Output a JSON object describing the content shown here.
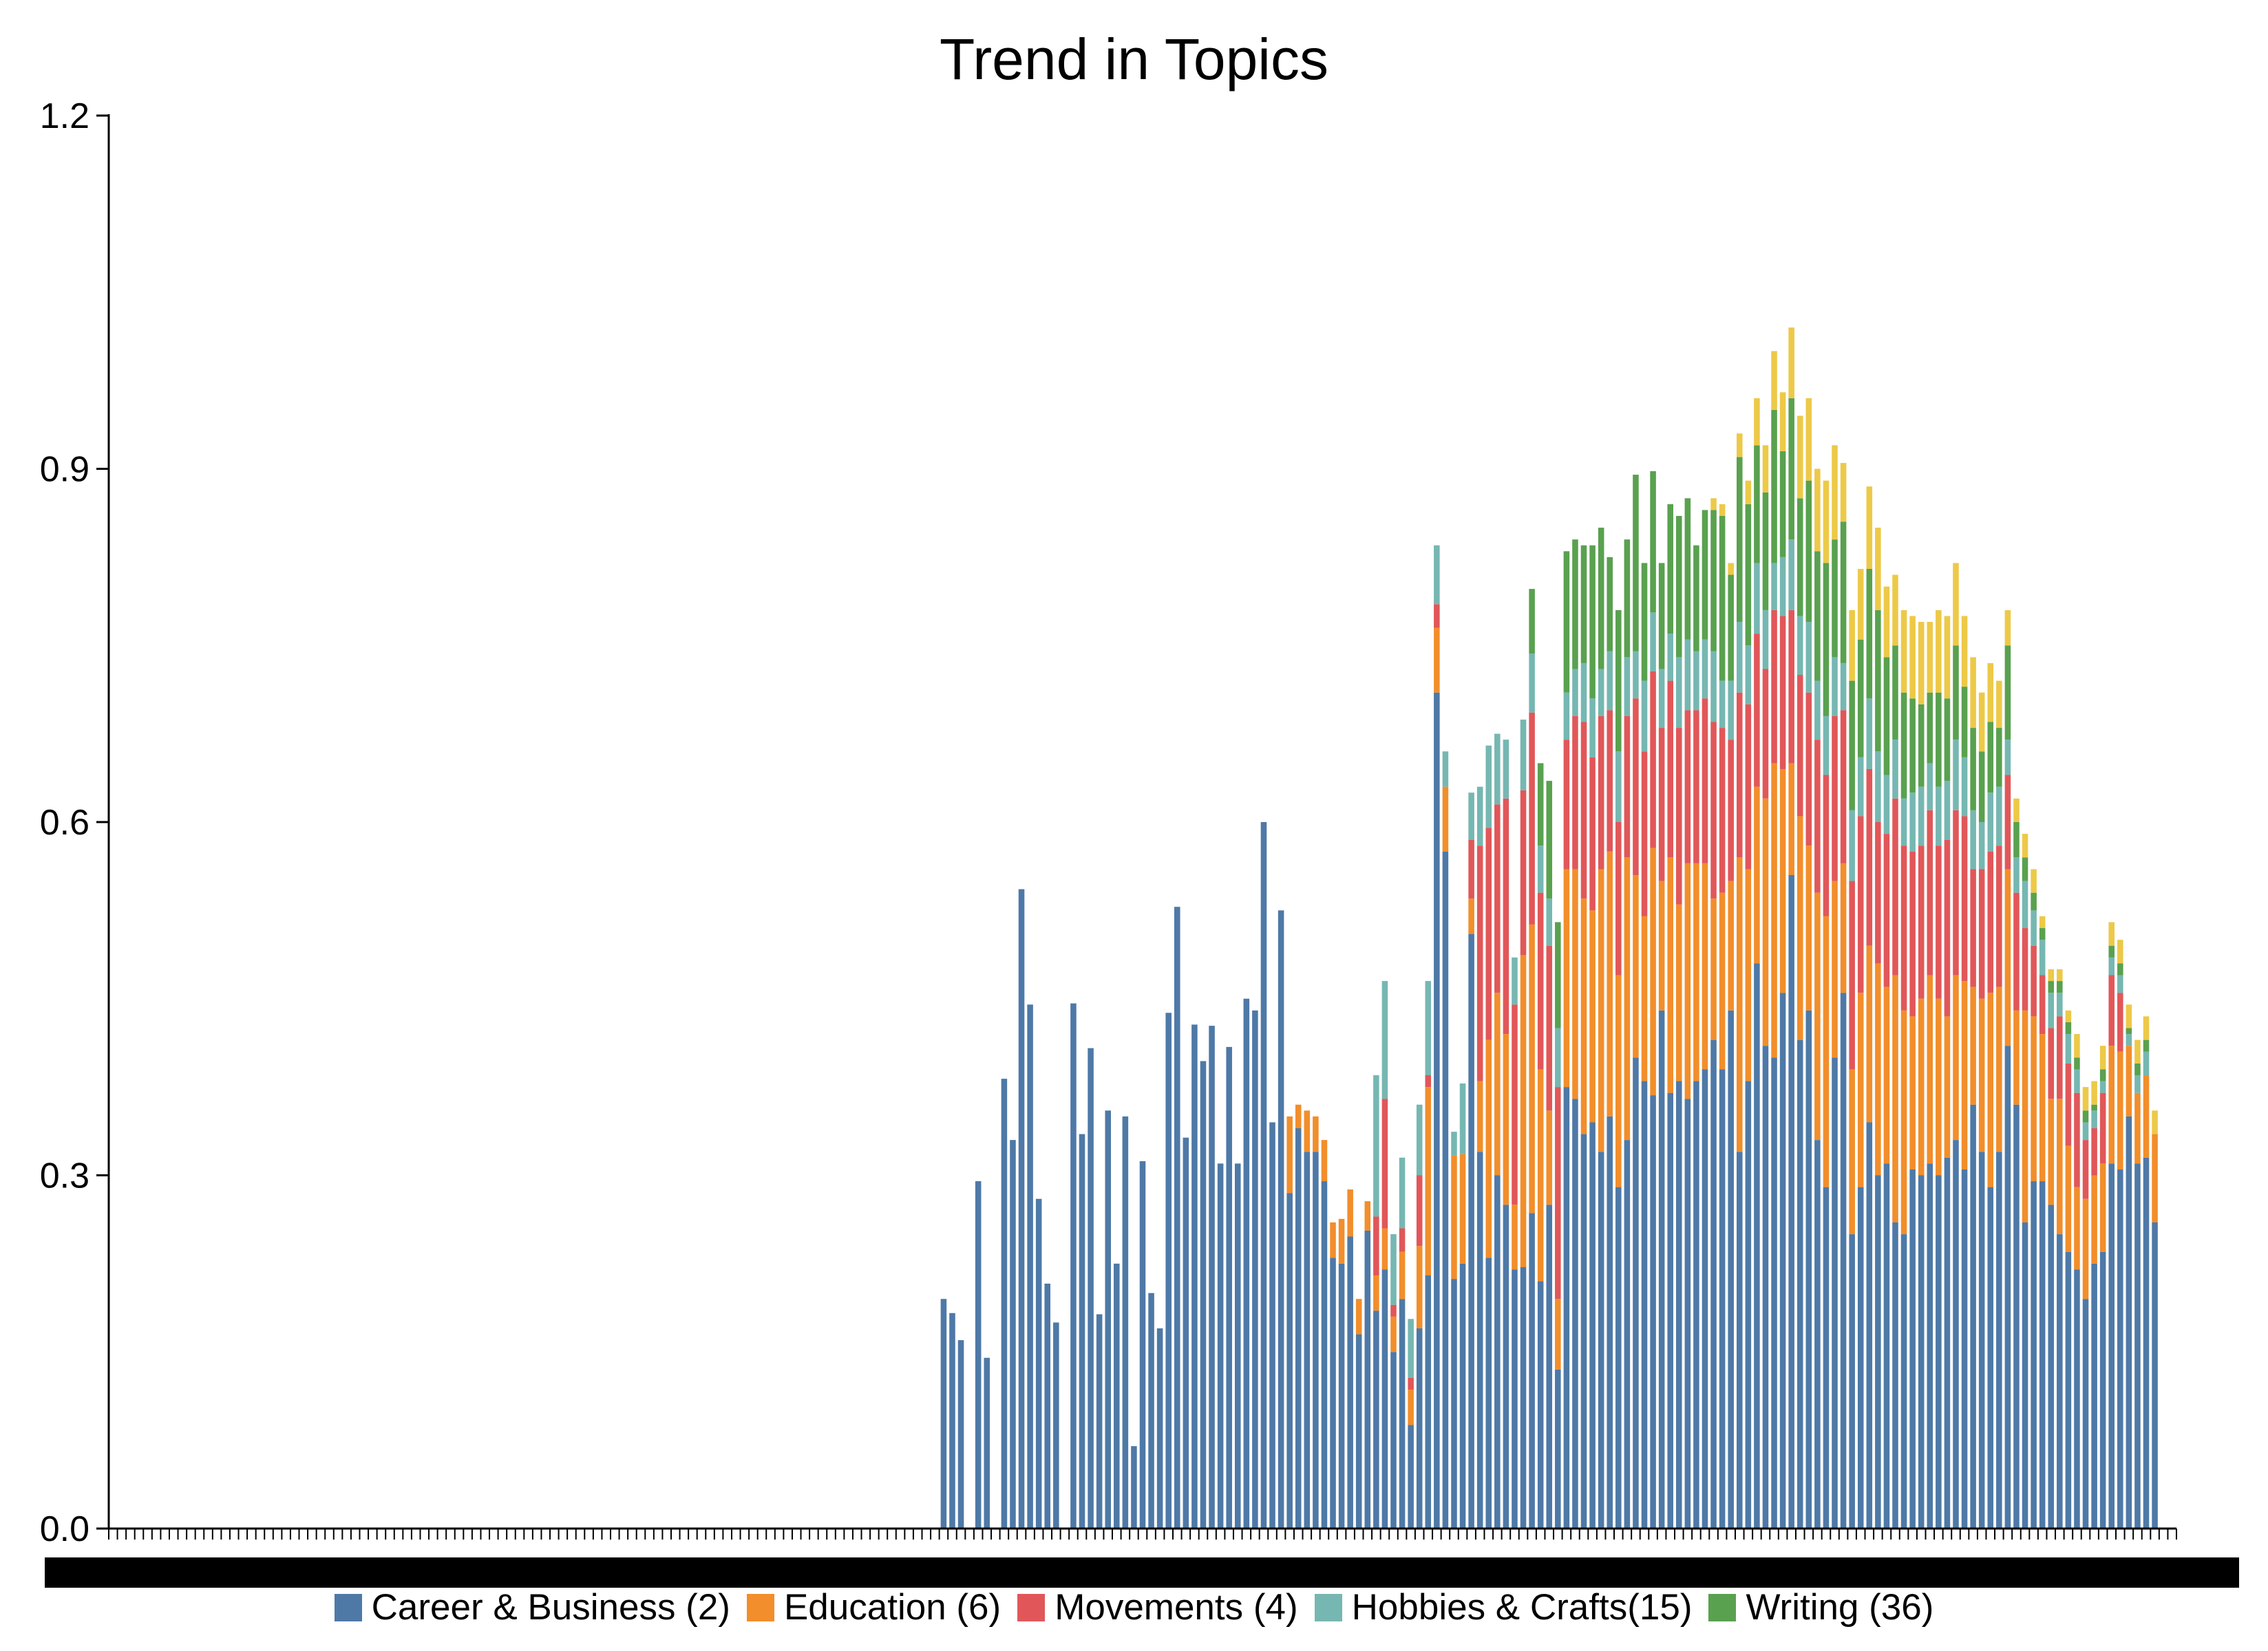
{
  "chart_data": {
    "type": "bar",
    "stacked": true,
    "title": "Trend in Topics",
    "xlabel": "",
    "ylabel": "",
    "ylim": [
      0,
      1.2
    ],
    "yticks": [
      "0.0",
      "0.3",
      "0.6",
      "0.9",
      "1.2"
    ],
    "num_x_slots": 239,
    "first_bar_index": 96,
    "legend_position": "bottom",
    "series": [
      {
        "name": "Career & Business (2)",
        "color": "#4e79a7",
        "values": [
          0.195,
          0.183,
          0.16,
          0,
          0.295,
          0.145,
          0,
          0.382,
          0.33,
          0.543,
          0.445,
          0.28,
          0.208,
          0.175,
          0,
          0.446,
          0.335,
          0.408,
          0.182,
          0.355,
          0.225,
          0.35,
          0.07,
          0.312,
          0.2,
          0.17,
          0.438,
          0.528,
          0.332,
          0.428,
          0.397,
          0.427,
          0.31,
          0.409,
          0.31,
          0.45,
          0.44,
          0.6,
          0.345,
          0.525,
          0.285,
          0.34,
          0.32,
          0.32,
          0.295,
          0.23,
          0.225,
          0.248,
          0.165,
          0.253,
          0.185,
          0.22,
          0.15,
          0.195,
          0.088,
          0.17,
          0.215,
          0.71,
          0.575,
          0.212,
          0.225,
          0.505,
          0.32,
          0.23,
          0.3,
          0.275,
          0.22,
          0.222,
          0.268,
          0.21,
          0.275,
          0.135,
          0.375,
          0.365,
          0.335,
          0.345,
          0.32,
          0.35,
          0.29,
          0.33,
          0.4,
          0.38,
          0.368,
          0.44,
          0.37,
          0.38,
          0.365,
          0.38,
          0.39,
          0.415,
          0.39,
          0.44,
          0.32,
          0.38,
          0.48,
          0.41,
          0.4,
          0.455,
          0.555,
          0.415,
          0.44,
          0.33,
          0.29,
          0.4,
          0.455,
          0.25,
          0.29,
          0.345,
          0.3,
          0.31,
          0.26,
          0.25,
          0.305,
          0.3,
          0.31,
          0.3,
          0.315,
          0.33,
          0.305,
          0.36,
          0.32,
          0.29,
          0.32,
          0.41,
          0.36,
          0.26,
          0.295,
          0.295,
          0.275,
          0.25,
          0.235,
          0.22,
          0.195,
          0.225,
          0.235,
          0.31,
          0.305,
          0.35,
          0.31,
          0.315,
          0.26
        ]
      },
      {
        "name": "Education (6)",
        "color": "#f28e2b",
        "values": [
          0,
          0,
          0,
          0,
          0,
          0,
          0,
          0,
          0,
          0,
          0,
          0,
          0,
          0,
          0,
          0,
          0,
          0,
          0,
          0,
          0,
          0,
          0,
          0,
          0,
          0,
          0,
          0,
          0,
          0,
          0,
          0,
          0,
          0,
          0,
          0,
          0,
          0,
          0,
          0,
          0.065,
          0.02,
          0.035,
          0.03,
          0.035,
          0.03,
          0.038,
          0.04,
          0.03,
          0.025,
          0.03,
          0.035,
          0.03,
          0.04,
          0.03,
          0.07,
          0.16,
          0.055,
          0.055,
          0.105,
          0.093,
          0.03,
          0.06,
          0.185,
          0.155,
          0.145,
          0.055,
          0.265,
          0.245,
          0.18,
          0.08,
          0.06,
          0.185,
          0.195,
          0.2,
          0.18,
          0.24,
          0.225,
          0.18,
          0.24,
          0.155,
          0.14,
          0.21,
          0.11,
          0.2,
          0.15,
          0.2,
          0.185,
          0.175,
          0.12,
          0.15,
          0.11,
          0.25,
          0.18,
          0.15,
          0.21,
          0.25,
          0.19,
          0.095,
          0.19,
          0.14,
          0.21,
          0.23,
          0.15,
          0.11,
          0.14,
          0.165,
          0.15,
          0.18,
          0.15,
          0.21,
          0.19,
          0.13,
          0.15,
          0.16,
          0.15,
          0.12,
          0.14,
          0.16,
          0.1,
          0.13,
          0.165,
          0.14,
          0.15,
          0.08,
          0.18,
          0.14,
          0.125,
          0.09,
          0.115,
          0.09,
          0.07,
          0.085,
          0.075,
          0.075,
          0.1,
          0.1,
          0.06,
          0.06,
          0.07,
          0.075
        ]
      },
      {
        "name": "Movements (4)",
        "color": "#e15759",
        "values": [
          0,
          0,
          0,
          0,
          0,
          0,
          0,
          0,
          0,
          0,
          0,
          0,
          0,
          0,
          0,
          0,
          0,
          0,
          0,
          0,
          0,
          0,
          0,
          0,
          0,
          0,
          0,
          0,
          0,
          0,
          0,
          0,
          0,
          0,
          0,
          0,
          0,
          0,
          0,
          0,
          0,
          0,
          0,
          0,
          0,
          0,
          0,
          0,
          0,
          0,
          0.05,
          0.11,
          0.01,
          0.02,
          0.01,
          0.06,
          0.01,
          0.02,
          0,
          0,
          0,
          0.05,
          0.2,
          0.18,
          0.16,
          0.2,
          0.17,
          0.14,
          0.18,
          0.15,
          0.14,
          0.18,
          0.11,
          0.13,
          0.15,
          0.13,
          0.13,
          0.12,
          0.13,
          0.12,
          0.15,
          0.14,
          0.15,
          0.13,
          0.15,
          0.15,
          0.13,
          0.13,
          0.14,
          0.15,
          0.14,
          0.12,
          0.14,
          0.14,
          0.13,
          0.11,
          0.13,
          0.13,
          0.13,
          0.12,
          0.13,
          0.13,
          0.12,
          0.14,
          0.13,
          0.16,
          0.15,
          0.15,
          0.12,
          0.13,
          0.15,
          0.14,
          0.14,
          0.13,
          0.14,
          0.13,
          0.15,
          0.14,
          0.14,
          0.1,
          0.11,
          0.12,
          0.12,
          0.08,
          0.1,
          0.07,
          0.06,
          0.05,
          0.06,
          0.07,
          0.07,
          0.08,
          0.05,
          0.04,
          0.06,
          0.06,
          0.05
        ]
      },
      {
        "name": "Hobbies & Crafts(15)",
        "color": "#76b7b2",
        "values": [
          0,
          0,
          0,
          0,
          0,
          0,
          0,
          0,
          0,
          0,
          0,
          0,
          0,
          0,
          0,
          0,
          0,
          0,
          0,
          0,
          0,
          0,
          0,
          0,
          0,
          0,
          0,
          0,
          0,
          0,
          0,
          0,
          0,
          0,
          0,
          0,
          0,
          0,
          0,
          0,
          0,
          0,
          0,
          0,
          0,
          0,
          0,
          0,
          0,
          0,
          0.12,
          0.1,
          0.06,
          0.06,
          0.05,
          0.06,
          0.08,
          0.05,
          0.03,
          0.02,
          0.06,
          0.04,
          0.05,
          0.07,
          0.06,
          0.05,
          0.04,
          0.06,
          0.05,
          0.04,
          0.04,
          0.05,
          0.04,
          0.04,
          0.05,
          0.05,
          0.04,
          0.05,
          0.06,
          0.05,
          0.04,
          0.06,
          0.05,
          0.05,
          0.04,
          0.06,
          0.06,
          0.05,
          0.05,
          0.06,
          0.04,
          0.05,
          0.06,
          0.05,
          0.06,
          0.05,
          0.04,
          0.05,
          0.06,
          0.05,
          0.06,
          0.05,
          0.05,
          0.05,
          0.04,
          0.06,
          0.05,
          0.06,
          0.06,
          0.05,
          0.05,
          0.04,
          0.05,
          0.05,
          0.04,
          0.05,
          0.05,
          0.06,
          0.05,
          0.05,
          0.04,
          0.05,
          0.05,
          0.03,
          0.03,
          0.04,
          0.03,
          0.03,
          0.03,
          0.02,
          0.025,
          0.02,
          0.015,
          0.015,
          0.01,
          0.015,
          0.015,
          0.01,
          0.015,
          0.02
        ]
      },
      {
        "name": "Writing (36)",
        "color": "#59a14f",
        "values": [
          0,
          0,
          0,
          0,
          0,
          0,
          0,
          0,
          0,
          0,
          0,
          0,
          0,
          0,
          0,
          0,
          0,
          0,
          0,
          0,
          0,
          0,
          0,
          0,
          0,
          0,
          0,
          0,
          0,
          0,
          0,
          0,
          0,
          0,
          0,
          0,
          0,
          0,
          0,
          0,
          0,
          0,
          0,
          0,
          0,
          0,
          0,
          0,
          0,
          0,
          0,
          0,
          0,
          0,
          0,
          0,
          0,
          0,
          0,
          0,
          0,
          0,
          0,
          0,
          0,
          0,
          0,
          0,
          0.055,
          0.07,
          0.1,
          0.09,
          0.12,
          0.11,
          0.1,
          0.13,
          0.12,
          0.08,
          0.12,
          0.1,
          0.15,
          0.1,
          0.12,
          0.09,
          0.11,
          0.12,
          0.12,
          0.09,
          0.11,
          0.12,
          0.14,
          0.09,
          0.14,
          0.12,
          0.1,
          0.1,
          0.13,
          0.09,
          0.12,
          0.1,
          0.12,
          0.11,
          0.13,
          0.1,
          0.12,
          0.11,
          0.1,
          0.11,
          0.12,
          0.1,
          0.08,
          0.09,
          0.08,
          0.07,
          0.06,
          0.08,
          0.07,
          0.08,
          0.06,
          0.07,
          0.06,
          0.06,
          0.05,
          0.08,
          0.03,
          0.02,
          0.015,
          0.01,
          0.01,
          0.01,
          0.01,
          0.01,
          0.01,
          0.005,
          0.01,
          0.01,
          0.01,
          0.005,
          0.01,
          0.01
        ]
      },
      {
        "name": "",
        "color": "#edc948",
        "values": [
          0,
          0,
          0,
          0,
          0,
          0,
          0,
          0,
          0,
          0,
          0,
          0,
          0,
          0,
          0,
          0,
          0,
          0,
          0,
          0,
          0,
          0,
          0,
          0,
          0,
          0,
          0,
          0,
          0,
          0,
          0,
          0,
          0,
          0,
          0,
          0,
          0,
          0,
          0,
          0,
          0,
          0,
          0,
          0,
          0,
          0,
          0,
          0,
          0,
          0,
          0,
          0,
          0,
          0,
          0,
          0,
          0,
          0,
          0,
          0,
          0,
          0,
          0,
          0,
          0,
          0,
          0,
          0,
          0,
          0,
          0,
          0,
          0,
          0,
          0,
          0,
          0,
          0,
          0,
          0,
          0,
          0,
          0,
          0,
          0,
          0,
          0,
          0,
          0,
          0.01,
          0.01,
          0.01,
          0.02,
          0.02,
          0.04,
          0.04,
          0.05,
          0.05,
          0.06,
          0.07,
          0.07,
          0.07,
          0.07,
          0.08,
          0.05,
          0.06,
          0.06,
          0.07,
          0.07,
          0.06,
          0.06,
          0.07,
          0.07,
          0.07,
          0.06,
          0.07,
          0.07,
          0.07,
          0.06,
          0.06,
          0.05,
          0.05,
          0.04,
          0.03,
          0.02,
          0.02,
          0.02,
          0.01,
          0.01,
          0.01,
          0.01,
          0.02,
          0.02,
          0.02,
          0.02,
          0.02,
          0.02,
          0.02,
          0.02,
          0.02,
          0.02,
          0.02
        ]
      }
    ]
  }
}
